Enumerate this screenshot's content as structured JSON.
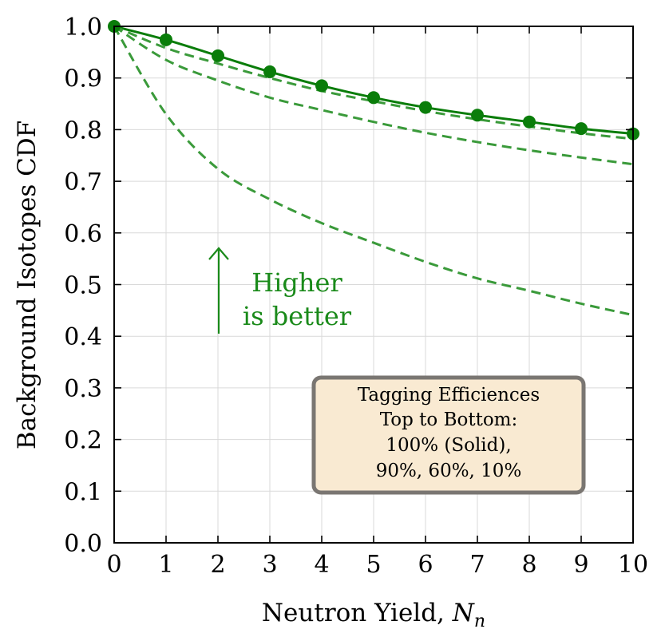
{
  "chart_data": {
    "type": "line",
    "title": "",
    "xlabel": "Neutron Yield, ",
    "xlabel_symbol": "N",
    "xlabel_subscript": "n",
    "ylabel": "Background Isotopes CDF",
    "xlim": [
      0,
      10
    ],
    "ylim": [
      0.0,
      1.0
    ],
    "xticks": [
      "0",
      "1",
      "2",
      "3",
      "4",
      "5",
      "6",
      "7",
      "8",
      "9",
      "10"
    ],
    "yticks": [
      "0.0",
      "0.1",
      "0.2",
      "0.3",
      "0.4",
      "0.5",
      "0.6",
      "0.7",
      "0.8",
      "0.9",
      "1.0"
    ],
    "grid": true,
    "x": [
      0,
      1,
      2,
      3,
      4,
      5,
      6,
      7,
      8,
      9,
      10
    ],
    "series": [
      {
        "name": "100% (Solid)",
        "style": "solid",
        "markers": true,
        "values": [
          1.0,
          0.974,
          0.943,
          0.912,
          0.885,
          0.862,
          0.843,
          0.828,
          0.815,
          0.802,
          0.792
        ]
      },
      {
        "name": "90%",
        "style": "dashed",
        "markers": false,
        "values": [
          1.0,
          0.958,
          0.928,
          0.9,
          0.875,
          0.855,
          0.836,
          0.82,
          0.806,
          0.793,
          0.782
        ]
      },
      {
        "name": "60%",
        "style": "dashed",
        "markers": false,
        "values": [
          1.0,
          0.935,
          0.895,
          0.862,
          0.838,
          0.815,
          0.794,
          0.776,
          0.76,
          0.746,
          0.733
        ]
      },
      {
        "name": "10%",
        "style": "dashed",
        "markers": false,
        "values": [
          1.0,
          0.83,
          0.724,
          0.665,
          0.619,
          0.581,
          0.544,
          0.512,
          0.488,
          0.463,
          0.441
        ]
      }
    ],
    "annotation": {
      "line1": "Higher",
      "line2": "is better"
    },
    "legend_box": {
      "lines": [
        "Tagging Efficiences",
        "Top to Bottom:",
        "100% (Solid),",
        "90%, 60%, 10%"
      ],
      "placement": "bottom-right"
    },
    "colors": {
      "line": "#0a7d0a",
      "dashed": "#3a9a3a",
      "annot": "#1a8a1a",
      "box_fill": "#f9ead2",
      "box_border": "#7a7672"
    }
  }
}
